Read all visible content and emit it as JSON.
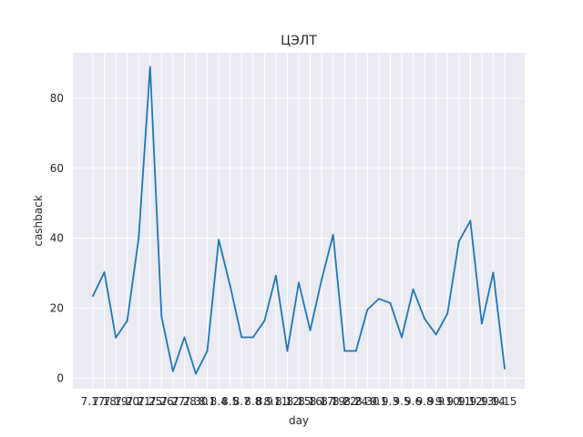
{
  "chart_data": {
    "type": "line",
    "title": "ЦЭЛТ",
    "xlabel": "day",
    "ylabel": "cashback",
    "grid": true,
    "style": {
      "background": "#eaeaf2",
      "grid_color": "#ffffff",
      "line_color": "#1f77b4"
    },
    "ylim": [
      -3,
      93
    ],
    "yticks": [
      0,
      20,
      40,
      60,
      80
    ],
    "categories": [
      "7.17",
      "7.18",
      "7.19",
      "7.20",
      "7.21",
      "7.25",
      "7.26",
      "7.27",
      "7.28",
      "7.30",
      "8.1",
      "8.4",
      "8.5",
      "8.7",
      "8.8",
      "8.9",
      "8.11",
      "8.12",
      "8.15",
      "8.16",
      "8.17",
      "8.19",
      "8.22",
      "8.24",
      "8.30",
      "9.1",
      "9.3",
      "9.5",
      "9.6",
      "9.8",
      "9.9",
      "9.10",
      "9.11",
      "9.12",
      "9.13",
      "9.14",
      "9.15"
    ],
    "series": [
      {
        "values": [
          23.5,
          30.3,
          11.6,
          16.4,
          40.0,
          89.0,
          17.6,
          2.0,
          11.7,
          1.3,
          7.8,
          39.6,
          26.4,
          11.7,
          11.7,
          16.4,
          29.3,
          7.8,
          27.3,
          13.7,
          28.2,
          41.0,
          7.8,
          7.8,
          19.6,
          22.7,
          21.5,
          11.7,
          25.4,
          17.0,
          12.5,
          18.5,
          39.1,
          45.0,
          15.6,
          30.2,
          2.8
        ]
      }
    ]
  }
}
